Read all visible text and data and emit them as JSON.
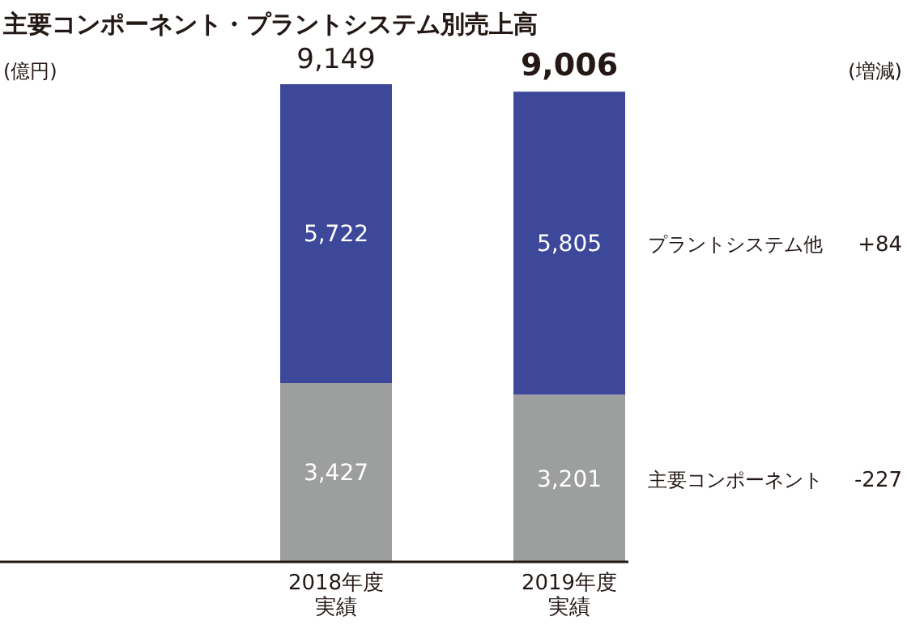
{
  "chart_data": {
    "type": "bar",
    "stacked": true,
    "title": "主要コンポーネント・プラントシステム別売上高",
    "categories": [
      "2018年度実績",
      "2019年度実績"
    ],
    "series": [
      {
        "name": "主要コンポーネント",
        "color": "#9d9e9e",
        "values": [
          3427,
          3201
        ],
        "value_labels": [
          "3,427",
          "3,201"
        ]
      },
      {
        "name": "プラントシステム他",
        "color": "#3e489b",
        "values": [
          5722,
          5805
        ],
        "value_labels": [
          "5,722",
          "5,805"
        ]
      }
    ],
    "totals": [
      "9,149",
      "9,006"
    ],
    "annotations": [
      "(億円)",
      "(増減)",
      "+84",
      "-227"
    ]
  }
}
